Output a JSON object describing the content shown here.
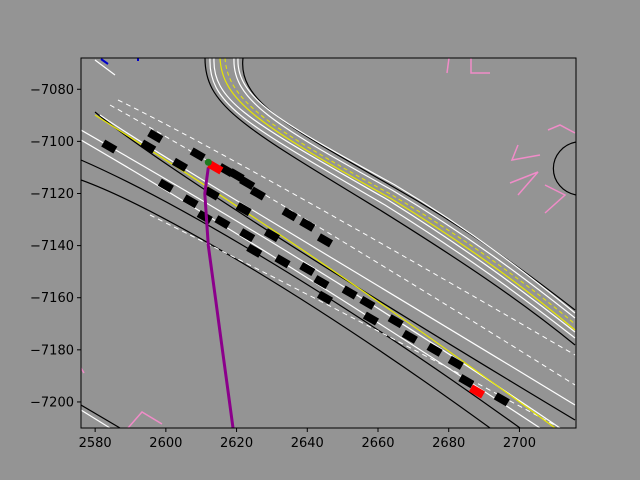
{
  "chart_data": {
    "type": "scatter",
    "title": "",
    "xlabel": "",
    "ylabel": "",
    "xlim": [
      2576,
      2716
    ],
    "ylim": [
      -7210,
      -7068
    ],
    "xticks": [
      2580,
      2600,
      2620,
      2640,
      2660,
      2680,
      2700
    ],
    "yticks": [
      -7080,
      -7100,
      -7120,
      -7140,
      -7160,
      -7180,
      -7200
    ],
    "xtick_labels": [
      "2580",
      "2600",
      "2620",
      "2640",
      "2660",
      "2680",
      "2700"
    ],
    "ytick_labels": [
      "−7080",
      "−7100",
      "−7120",
      "−7140",
      "−7160",
      "−7180",
      "−7200"
    ],
    "grid": false,
    "colors": {
      "figure_bg": "#949494",
      "axes_bg": "#949494",
      "road_edge": "#000000",
      "lane_line": "#ffffff",
      "center_line": "#e6e600",
      "crosswalk": "#f08cc8",
      "vehicle": "#000000",
      "ego_vehicle": "#ff0000",
      "trajectory": "#8b008b",
      "goal_marker": "#1f7a1f",
      "blue_marker": "#0000cc"
    },
    "vehicles": [
      {
        "x": 2584,
        "y": -7102
      },
      {
        "x": 2597,
        "y": -7098
      },
      {
        "x": 2595,
        "y": -7102
      },
      {
        "x": 2604,
        "y": -7109
      },
      {
        "x": 2600,
        "y": -7117
      },
      {
        "x": 2607,
        "y": -7123
      },
      {
        "x": 2609,
        "y": -7105
      },
      {
        "x": 2617,
        "y": -7111
      },
      {
        "x": 2620,
        "y": -7113
      },
      {
        "x": 2623,
        "y": -7116
      },
      {
        "x": 2626,
        "y": -7120
      },
      {
        "x": 2613,
        "y": -7120
      },
      {
        "x": 2611,
        "y": -7129
      },
      {
        "x": 2616,
        "y": -7131
      },
      {
        "x": 2622,
        "y": -7126
      },
      {
        "x": 2623,
        "y": -7136
      },
      {
        "x": 2630,
        "y": -7136
      },
      {
        "x": 2625,
        "y": -7142
      },
      {
        "x": 2635,
        "y": -7128
      },
      {
        "x": 2640,
        "y": -7132
      },
      {
        "x": 2645,
        "y": -7138
      },
      {
        "x": 2633,
        "y": -7146
      },
      {
        "x": 2640,
        "y": -7149
      },
      {
        "x": 2644,
        "y": -7154
      },
      {
        "x": 2652,
        "y": -7158
      },
      {
        "x": 2657,
        "y": -7162
      },
      {
        "x": 2645,
        "y": -7160
      },
      {
        "x": 2658,
        "y": -7168
      },
      {
        "x": 2665,
        "y": -7169
      },
      {
        "x": 2669,
        "y": -7175
      },
      {
        "x": 2676,
        "y": -7180
      },
      {
        "x": 2682,
        "y": -7185
      },
      {
        "x": 2685,
        "y": -7192
      },
      {
        "x": 2695,
        "y": -7199
      }
    ],
    "ego_vehicles": [
      {
        "x": 2614,
        "y": -7110
      },
      {
        "x": 2688,
        "y": -7196
      }
    ],
    "goal": {
      "x": 2612,
      "y": -7108
    },
    "trajectory": [
      {
        "x": 2612,
        "y": -7110
      },
      {
        "x": 2611,
        "y": -7120
      },
      {
        "x": 2612,
        "y": -7140
      },
      {
        "x": 2614,
        "y": -7160
      },
      {
        "x": 2616,
        "y": -7180
      },
      {
        "x": 2618,
        "y": -7200
      },
      {
        "x": 2619,
        "y": -7210
      }
    ]
  }
}
